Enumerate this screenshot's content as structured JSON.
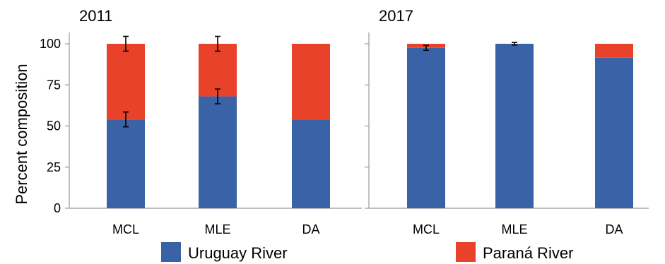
{
  "colors": {
    "uruguay": "#3a62a7",
    "parana": "#e8432a",
    "axis": "#999999",
    "error_bar": "#000000"
  },
  "legend": {
    "uruguay_label": "Uruguay River",
    "parana_label": "Paraná River"
  },
  "ylabel": "Percent composition",
  "chart_data": [
    {
      "type": "bar",
      "stacked": true,
      "title": "2011",
      "categories": [
        "MCL",
        "MLE",
        "DA"
      ],
      "ylabel": "Percent composition",
      "ylim": [
        0,
        100
      ],
      "yticks": [
        0,
        25,
        50,
        75,
        100
      ],
      "series": [
        {
          "name": "Uruguay River",
          "values": [
            54,
            68,
            54
          ],
          "error": [
            4.5,
            4.5,
            null
          ]
        },
        {
          "name": "Paraná River",
          "values": [
            46,
            32,
            46
          ],
          "error": [
            4.5,
            4.5,
            null
          ]
        }
      ]
    },
    {
      "type": "bar",
      "stacked": true,
      "title": "2017",
      "categories": [
        "MCL",
        "MLE",
        "DA"
      ],
      "ylim": [
        0,
        100
      ],
      "yticks": [
        0,
        25,
        50,
        75,
        100
      ],
      "series": [
        {
          "name": "Uruguay River",
          "values": [
            97.5,
            100,
            91.5
          ],
          "error": [
            1.5,
            0.8,
            null
          ]
        },
        {
          "name": "Paraná River",
          "values": [
            2.5,
            0,
            8.5
          ],
          "error": [
            null,
            null,
            null
          ]
        }
      ]
    }
  ]
}
